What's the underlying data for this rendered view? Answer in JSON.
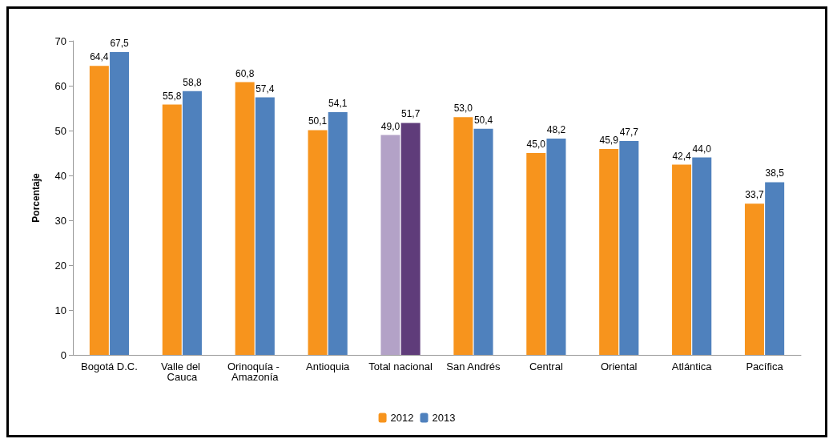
{
  "chart_data": {
    "type": "bar",
    "ylabel": "Porcentaje",
    "categories": [
      "Bogotá D.C.",
      "Valle del Cauca",
      "Orinoquía - Amazonía",
      "Antioquia",
      "Total nacional",
      "San Andrés",
      "Central",
      "Oriental",
      "Atlántica",
      "Pacífica"
    ],
    "series": [
      {
        "name": "2012",
        "color": "#f7941d",
        "colors": [
          "#f7941d",
          "#f7941d",
          "#f7941d",
          "#f7941d",
          "#b3a2c7",
          "#f7941d",
          "#f7941d",
          "#f7941d",
          "#f7941d",
          "#f7941d"
        ],
        "values": [
          64.4,
          55.8,
          60.8,
          50.1,
          49.0,
          53.0,
          45.0,
          45.9,
          42.4,
          33.7
        ],
        "value_labels": [
          "64,4",
          "55,8",
          "60,8",
          "50,1",
          "49,0",
          "53,0",
          "45,0",
          "45,9",
          "42,4",
          "33,7"
        ]
      },
      {
        "name": "2013",
        "color": "#4f81bd",
        "colors": [
          "#4f81bd",
          "#4f81bd",
          "#4f81bd",
          "#4f81bd",
          "#5f3c7a",
          "#4f81bd",
          "#4f81bd",
          "#4f81bd",
          "#4f81bd",
          "#4f81bd"
        ],
        "values": [
          67.5,
          58.8,
          57.4,
          54.1,
          51.7,
          50.4,
          48.2,
          47.7,
          44.0,
          38.5
        ],
        "value_labels": [
          "67,5",
          "58,8",
          "57,4",
          "54,1",
          "51,7",
          "50,4",
          "48,2",
          "47,7",
          "44,0",
          "38,5"
        ]
      }
    ],
    "ylim": [
      0,
      70
    ],
    "yticks": [
      0,
      10,
      20,
      30,
      40,
      50,
      60,
      70
    ],
    "grid": false,
    "legend": "bottom"
  }
}
